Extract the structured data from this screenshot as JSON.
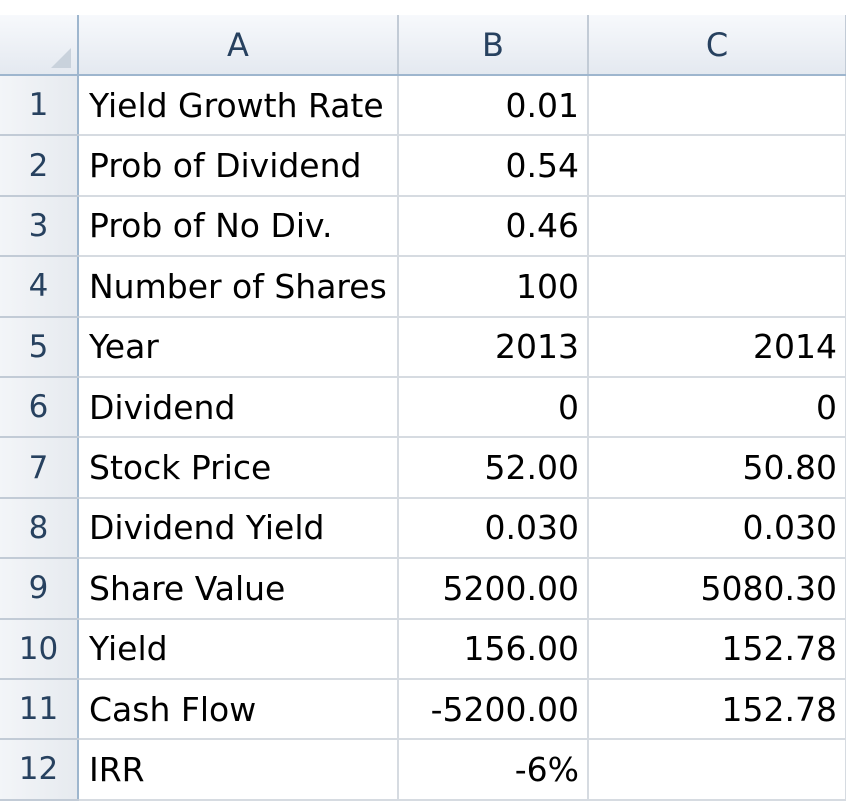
{
  "columns": [
    "A",
    "B",
    "C"
  ],
  "rows": [
    {
      "num": "1",
      "a": "Yield Growth Rate",
      "b": "0.01",
      "c": ""
    },
    {
      "num": "2",
      "a": "Prob of Dividend",
      "b": "0.54",
      "c": ""
    },
    {
      "num": "3",
      "a": "Prob of No Div.",
      "b": "0.46",
      "c": ""
    },
    {
      "num": "4",
      "a": "Number of Shares",
      "b": "100",
      "c": ""
    },
    {
      "num": "5",
      "a": "Year",
      "b": "2013",
      "c": "2014"
    },
    {
      "num": "6",
      "a": "Dividend",
      "b": "0",
      "c": "0"
    },
    {
      "num": "7",
      "a": "Stock Price",
      "b": "52.00",
      "c": "50.80"
    },
    {
      "num": "8",
      "a": "Dividend Yield",
      "b": "0.030",
      "c": "0.030"
    },
    {
      "num": "9",
      "a": "Share Value",
      "b": "5200.00",
      "c": "5080.30"
    },
    {
      "num": "10",
      "a": "Yield",
      "b": "156.00",
      "c": "152.78"
    },
    {
      "num": "11",
      "a": "Cash Flow",
      "b": "-5200.00",
      "c": "152.78"
    },
    {
      "num": "12",
      "a": "IRR",
      "b": "-6%",
      "c": ""
    }
  ]
}
